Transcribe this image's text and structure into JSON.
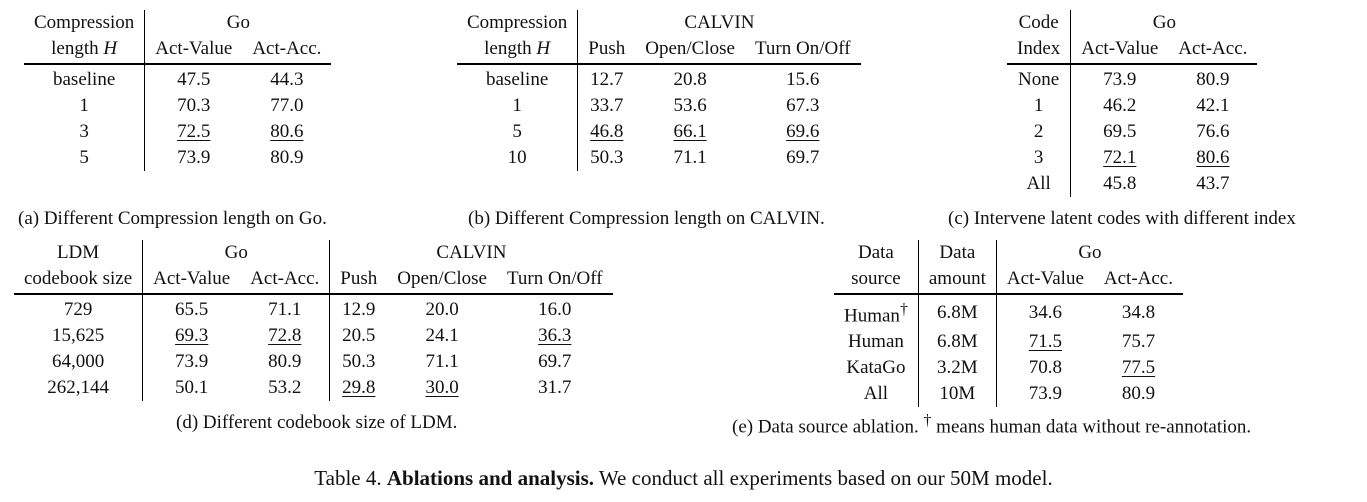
{
  "tables": {
    "a": {
      "caption": "(a)  Different Compression length on Go.",
      "header": {
        "row_label": "Compression",
        "row_label2": "length",
        "row_label_var": "H",
        "group": "Go",
        "cols": [
          "Act-Value",
          "Act-Acc."
        ]
      },
      "rows": [
        {
          "label": "baseline",
          "v": [
            "47.5",
            "44.3"
          ]
        },
        {
          "label": "1",
          "v": [
            "70.3",
            "77.0"
          ]
        },
        {
          "label": "3",
          "v": [
            "72.5",
            "80.6"
          ]
        },
        {
          "label": "5",
          "v": [
            "73.9",
            "80.9"
          ]
        }
      ]
    },
    "b": {
      "caption": "(b)  Different Compression length on CALVIN.",
      "header": {
        "row_label": "Compression",
        "row_label2": "length",
        "row_label_var": "H",
        "group": "CALVIN",
        "cols": [
          "Push",
          "Open/Close",
          "Turn On/Off"
        ]
      },
      "rows": [
        {
          "label": "baseline",
          "v": [
            "12.7",
            "20.8",
            "15.6"
          ]
        },
        {
          "label": "1",
          "v": [
            "33.7",
            "53.6",
            "67.3"
          ]
        },
        {
          "label": "5",
          "v": [
            "46.8",
            "66.1",
            "69.6"
          ]
        },
        {
          "label": "10",
          "v": [
            "50.3",
            "71.1",
            "69.7"
          ]
        }
      ]
    },
    "c": {
      "caption": "(c)  Intervene latent codes with different index",
      "header": {
        "row_label": "Code",
        "row_label2": "Index",
        "group": "Go",
        "cols": [
          "Act-Value",
          "Act-Acc."
        ]
      },
      "rows": [
        {
          "label": "None",
          "v": [
            "73.9",
            "80.9"
          ]
        },
        {
          "label": "1",
          "v": [
            "46.2",
            "42.1"
          ]
        },
        {
          "label": "2",
          "v": [
            "69.5",
            "76.6"
          ]
        },
        {
          "label": "3",
          "v": [
            "72.1",
            "80.6"
          ]
        },
        {
          "label": "All",
          "v": [
            "45.8",
            "43.7"
          ]
        }
      ]
    },
    "d": {
      "caption": "(d)  Different codebook size of LDM.",
      "header": {
        "row_label": "LDM",
        "row_label2": "codebook size",
        "group1": "Go",
        "group2": "CALVIN",
        "cols": [
          "Act-Value",
          "Act-Acc.",
          "Push",
          "Open/Close",
          "Turn On/Off"
        ]
      },
      "rows": [
        {
          "label": "729",
          "v": [
            "65.5",
            "71.1",
            "12.9",
            "20.0",
            "16.0"
          ]
        },
        {
          "label": "15,625",
          "v": [
            "69.3",
            "72.8",
            "20.5",
            "24.1",
            "36.3"
          ]
        },
        {
          "label": "64,000",
          "v": [
            "73.9",
            "80.9",
            "50.3",
            "71.1",
            "69.7"
          ]
        },
        {
          "label": "262,144",
          "v": [
            "50.1",
            "53.2",
            "29.8",
            "30.0",
            "31.7"
          ]
        }
      ]
    },
    "e": {
      "caption": "(e)  Data source ablation.",
      "caption_dagger": "†",
      "caption_rest": " means human data without re-annotation.",
      "header": {
        "row_label": "Data",
        "row_label2": "source",
        "col2a": "Data",
        "col2b": "amount",
        "group": "Go",
        "cols": [
          "Act-Value",
          "Act-Acc."
        ]
      },
      "rows": [
        {
          "label": "Human",
          "dagger": "†",
          "amount": "6.8M",
          "v": [
            "34.6",
            "34.8"
          ]
        },
        {
          "label": "Human",
          "dagger": "",
          "amount": "6.8M",
          "v": [
            "71.5",
            "75.7"
          ]
        },
        {
          "label": "KataGo",
          "dagger": "",
          "amount": "3.2M",
          "v": [
            "70.8",
            "77.5"
          ]
        },
        {
          "label": "All",
          "dagger": "",
          "amount": "10M",
          "v": [
            "73.9",
            "80.9"
          ]
        }
      ]
    }
  },
  "footer": {
    "prefix": "Table 4. ",
    "bold": "Ablations and analysis.",
    "rest": " We conduct all experiments based on our 50M model."
  }
}
